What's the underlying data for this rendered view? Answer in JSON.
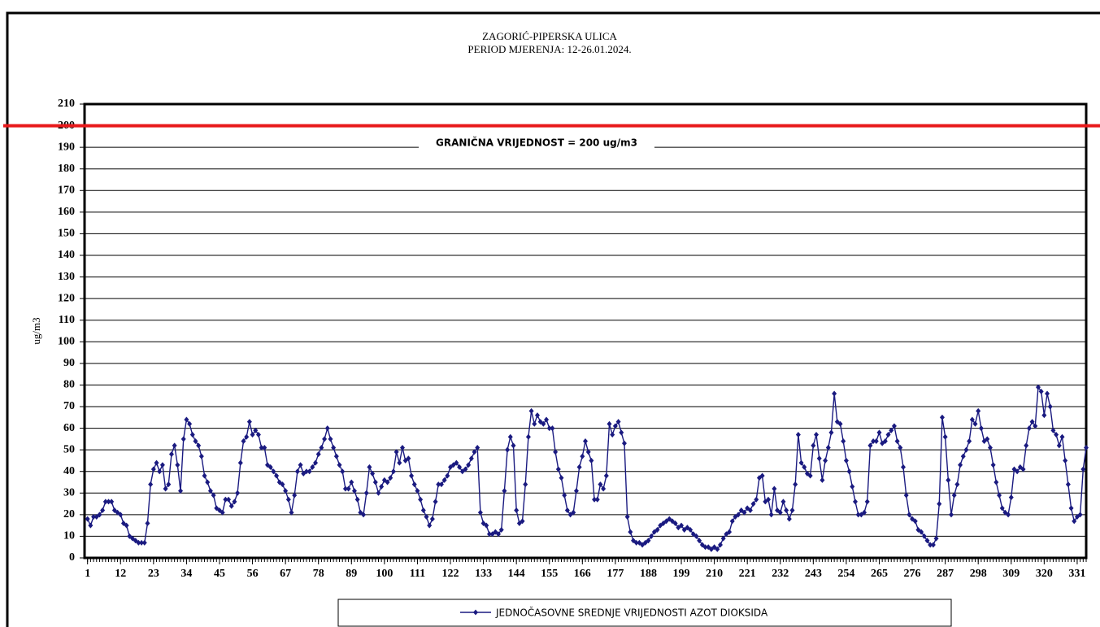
{
  "chart_data": {
    "type": "line",
    "title": "ZAGORIĆ-PIPERSKA  ULICA",
    "subtitle": "PERIOD MJERENJA:  12-26.01.2024.",
    "y_label": "ug/m3",
    "x": [
      1,
      2,
      3,
      4,
      5,
      6,
      7,
      8,
      9,
      10,
      11,
      12,
      13,
      14,
      15,
      16,
      17,
      18,
      19,
      20,
      21,
      22,
      23,
      24,
      25,
      26,
      27,
      28,
      29,
      30,
      31,
      32,
      33,
      34,
      35,
      36,
      37,
      38,
      39,
      40,
      41,
      42,
      43,
      44,
      45,
      46,
      47,
      48,
      49,
      50,
      51,
      52,
      53,
      54,
      55,
      56,
      57,
      58,
      59,
      60,
      61,
      62,
      63,
      64,
      65,
      66,
      67,
      68,
      69,
      70,
      71,
      72,
      73,
      74,
      75,
      76,
      77,
      78,
      79,
      80,
      81,
      82,
      83,
      84,
      85,
      86,
      87,
      88,
      89,
      90,
      91,
      92,
      93,
      94,
      95,
      96,
      97,
      98,
      99,
      100,
      101,
      102,
      103,
      104,
      105,
      106,
      107,
      108,
      109,
      110,
      111,
      112,
      113,
      114,
      115,
      116,
      117,
      118,
      119,
      120,
      121,
      122,
      123,
      124,
      125,
      126,
      127,
      128,
      129,
      130,
      131,
      132,
      133,
      134,
      135,
      136,
      137,
      138,
      139,
      140,
      141,
      142,
      143,
      144,
      145,
      146,
      147,
      148,
      149,
      150,
      151,
      152,
      153,
      154,
      155,
      156,
      157,
      158,
      159,
      160,
      161,
      162,
      163,
      164,
      165,
      166,
      167,
      168,
      169,
      170,
      171,
      172,
      173,
      174,
      175,
      176,
      177,
      178,
      179,
      180,
      181,
      182,
      183,
      184,
      185,
      186,
      187,
      188,
      189,
      190,
      191,
      192,
      193,
      194,
      195,
      196,
      197,
      198,
      199,
      200,
      201,
      202,
      203,
      204,
      205,
      206,
      207,
      208,
      209,
      210,
      211,
      212,
      213,
      214,
      215,
      216,
      217,
      218,
      219,
      220,
      221,
      222,
      223,
      224,
      225,
      226,
      227,
      228,
      229,
      230,
      231,
      232,
      233,
      234,
      235,
      236,
      237,
      238,
      239,
      240,
      241,
      242,
      243,
      244,
      245,
      246,
      247,
      248,
      249,
      250,
      251,
      252,
      253,
      254,
      255,
      256,
      257,
      258,
      259,
      260,
      261,
      262,
      263,
      264,
      265,
      266,
      267,
      268,
      269,
      270,
      271,
      272,
      273,
      274,
      275,
      276,
      277,
      278,
      279,
      280,
      281,
      282,
      283,
      284,
      285,
      286,
      287,
      288,
      289,
      290,
      291,
      292,
      293,
      294,
      295,
      296,
      297,
      298,
      299,
      300,
      301,
      302,
      303,
      304,
      305,
      306,
      307,
      308,
      309,
      310,
      311,
      312,
      313,
      314,
      315,
      316,
      317,
      318,
      319,
      320,
      321,
      322,
      323,
      324,
      325,
      326,
      327,
      328,
      329,
      330,
      331,
      332,
      333,
      334
    ],
    "series": [
      {
        "name": "JEDNOČASOVNE SREDNJE VRIJEDNOSTI AZOT DIOKSIDA",
        "color": "#1a1a80",
        "values": [
          18,
          15,
          19,
          19,
          20,
          22,
          26,
          26,
          26,
          22,
          21,
          20,
          16,
          15,
          10,
          9,
          8,
          7,
          7,
          7,
          16,
          34,
          41,
          44,
          40,
          43,
          32,
          34,
          48,
          52,
          43,
          31,
          55,
          64,
          62,
          57,
          54,
          52,
          47,
          38,
          35,
          31,
          29,
          23,
          22,
          21,
          27,
          27,
          24,
          26,
          30,
          44,
          54,
          56,
          63,
          57,
          59,
          57,
          51,
          51,
          43,
          42,
          40,
          38,
          35,
          34,
          31,
          27,
          21,
          29,
          40,
          43,
          39,
          40,
          40,
          42,
          44,
          48,
          51,
          55,
          60,
          55,
          51,
          47,
          43,
          40,
          32,
          32,
          35,
          31,
          27,
          21,
          20,
          30,
          42,
          39,
          35,
          30,
          33,
          36,
          35,
          37,
          40,
          49,
          44,
          51,
          45,
          46,
          38,
          34,
          31,
          27,
          22,
          19,
          15,
          18,
          26,
          34,
          34,
          36,
          38,
          42,
          43,
          44,
          42,
          40,
          41,
          43,
          46,
          49,
          51,
          21,
          16,
          15,
          11,
          11,
          12,
          11,
          13,
          31,
          50,
          56,
          52,
          22,
          16,
          17,
          34,
          56,
          68,
          62,
          66,
          63,
          62,
          64,
          60,
          60,
          49,
          41,
          37,
          29,
          22,
          20,
          21,
          31,
          42,
          47,
          54,
          49,
          45,
          27,
          27,
          34,
          32,
          38,
          62,
          57,
          61,
          63,
          58,
          53,
          19,
          12,
          8,
          7,
          7,
          6,
          7,
          8,
          10,
          12,
          13,
          15,
          16,
          17,
          18,
          17,
          16,
          14,
          15,
          13,
          14,
          13,
          11,
          10,
          8,
          6,
          5,
          5,
          4,
          5,
          4,
          6,
          9,
          11,
          12,
          17,
          19,
          20,
          22,
          21,
          23,
          22,
          25,
          27,
          37,
          38,
          26,
          27,
          20,
          32,
          22,
          21,
          26,
          22,
          18,
          22,
          34,
          57,
          44,
          42,
          39,
          38,
          52,
          57,
          46,
          36,
          45,
          51,
          58,
          76,
          63,
          62,
          54,
          45,
          40,
          33,
          26,
          20,
          20,
          21,
          26,
          52,
          54,
          54,
          58,
          53,
          54,
          57,
          59,
          61,
          54,
          51,
          42,
          29,
          20,
          18,
          17,
          13,
          12,
          10,
          8,
          6,
          6,
          9,
          25,
          65,
          56,
          36,
          20,
          29,
          34,
          43,
          47,
          50,
          54,
          64,
          62,
          68,
          60,
          54,
          55,
          51,
          43,
          35,
          29,
          23,
          21,
          20,
          28,
          41,
          40,
          42,
          41,
          52,
          60,
          63,
          61,
          79,
          77,
          66,
          76,
          70,
          59,
          57,
          52,
          56,
          45,
          34,
          23,
          17,
          19,
          20,
          41,
          51
        ]
      }
    ],
    "xlim": [
      0,
      334
    ],
    "xticks": [
      1,
      12,
      23,
      34,
      45,
      56,
      67,
      78,
      89,
      100,
      111,
      122,
      133,
      144,
      155,
      166,
      177,
      188,
      199,
      210,
      221,
      232,
      243,
      254,
      265,
      276,
      287,
      298,
      309,
      320,
      331
    ],
    "ylim": [
      0,
      210
    ],
    "yticks": [
      0,
      10,
      20,
      30,
      40,
      50,
      60,
      70,
      80,
      90,
      100,
      110,
      120,
      130,
      140,
      150,
      160,
      170,
      180,
      190,
      200,
      210
    ],
    "grid": true,
    "threshold": {
      "value": 200,
      "label": "GRANIČNA VRIJEDNOST = 200 ug/m3",
      "color": "#e8191b"
    },
    "legend": "bottom"
  }
}
